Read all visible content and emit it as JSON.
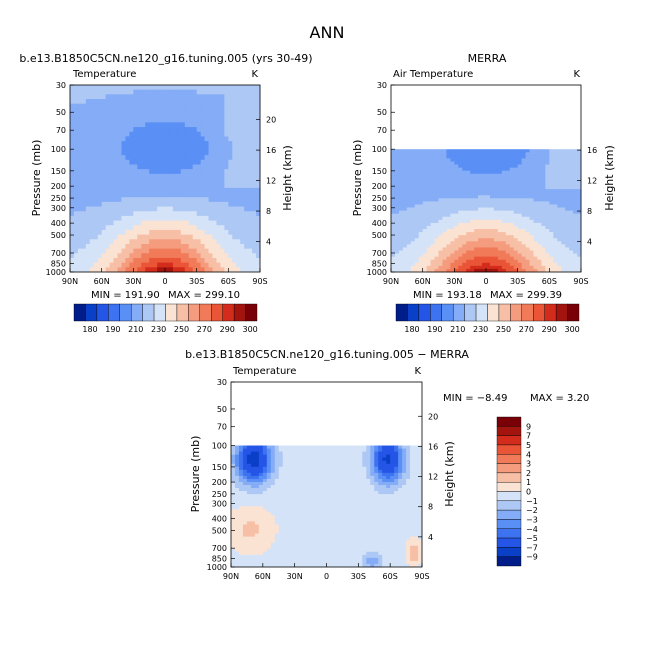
{
  "figure": {
    "main_title": "ANN"
  },
  "palettes": {
    "temperature": [
      "#001d89",
      "#0a3fc8",
      "#2455e6",
      "#3d72f0",
      "#5a8ff5",
      "#85acf6",
      "#adc8f4",
      "#d4e3f7",
      "#fbe3d3",
      "#f7c0a6",
      "#f59c7f",
      "#f17a58",
      "#ea5437",
      "#d42c1c",
      "#a3140f",
      "#7a0008"
    ],
    "difference": [
      "#001d89",
      "#0a3fc8",
      "#2455e6",
      "#3d72f0",
      "#5a8ff5",
      "#85acf6",
      "#adc8f4",
      "#d4e3f7",
      "#fbe3d3",
      "#f7c0a6",
      "#f59c7f",
      "#f17a58",
      "#ea5437",
      "#d42c1c",
      "#a3140f",
      "#7a0008"
    ]
  },
  "chart_data": [
    {
      "type": "heatmap",
      "title": "b.e13.B1850C5CN.ne120_g16.tuning.005 (yrs 30-49)",
      "left_label": "Temperature",
      "right_label": "K",
      "xlabel": "",
      "ylabel": "Pressure (mb)",
      "ylabel_right": "Height (km)",
      "x_ticks": [
        "90N",
        "60N",
        "30N",
        "0",
        "30S",
        "60S",
        "90S"
      ],
      "y_ticks": [
        30,
        50,
        70,
        100,
        150,
        200,
        250,
        300,
        400,
        500,
        700,
        850,
        1000
      ],
      "y_ticks_right": [
        20,
        16,
        12,
        8,
        4
      ],
      "ylim": [
        30,
        1000
      ],
      "y_scale": "log",
      "min_label": "MIN = 191.90",
      "max_label": "MAX = 299.10",
      "min": 191.9,
      "max": 299.1,
      "data_top_pressure": 30,
      "colorbar_orientation": "horizontal",
      "colorbar_labels": [
        "180",
        "190",
        "210",
        "230",
        "250",
        "270",
        "290",
        "300"
      ],
      "levels": [
        180,
        185,
        190,
        200,
        210,
        220,
        230,
        240,
        250,
        260,
        270,
        280,
        290,
        295,
        300
      ]
    },
    {
      "type": "heatmap",
      "title": "MERRA",
      "left_label": "Air Temperature",
      "right_label": "K",
      "xlabel": "",
      "ylabel": "Pressure (mb)",
      "ylabel_right": "Height (km)",
      "x_ticks": [
        "90N",
        "60N",
        "30N",
        "0",
        "30S",
        "60S",
        "90S"
      ],
      "y_ticks": [
        30,
        50,
        70,
        100,
        150,
        200,
        250,
        300,
        400,
        500,
        700,
        850,
        1000
      ],
      "y_ticks_right": [
        16,
        12,
        8,
        4
      ],
      "ylim": [
        30,
        1000
      ],
      "y_scale": "log",
      "min_label": "MIN = 193.18",
      "max_label": "MAX = 299.39",
      "min": 193.18,
      "max": 299.39,
      "data_top_pressure": 100,
      "colorbar_orientation": "horizontal",
      "colorbar_labels": [
        "180",
        "190",
        "210",
        "230",
        "250",
        "270",
        "290",
        "300"
      ],
      "levels": [
        180,
        185,
        190,
        200,
        210,
        220,
        230,
        240,
        250,
        260,
        270,
        280,
        290,
        295,
        300
      ]
    },
    {
      "type": "heatmap",
      "title": "b.e13.B1850C5CN.ne120_g16.tuning.005 − MERRA",
      "left_label": "Temperature",
      "right_label": "K",
      "xlabel": "",
      "ylabel": "Pressure (mb)",
      "ylabel_right": "Height (km)",
      "x_ticks": [
        "90N",
        "60N",
        "30N",
        "0",
        "30S",
        "60S",
        "90S"
      ],
      "y_ticks": [
        30,
        50,
        70,
        100,
        150,
        200,
        250,
        300,
        400,
        500,
        700,
        850,
        1000
      ],
      "y_ticks_right": [
        20,
        16,
        12,
        8,
        4
      ],
      "ylim": [
        30,
        1000
      ],
      "y_scale": "log",
      "min_label": "MIN =  −8.49",
      "max_label": "MAX =    3.20",
      "min": -8.49,
      "max": 3.2,
      "data_top_pressure": 100,
      "colorbar_orientation": "vertical",
      "colorbar_labels": [
        "9",
        "7",
        "5",
        "4",
        "3",
        "2",
        "1",
        "0",
        "−1",
        "−2",
        "−3",
        "−4",
        "−5",
        "−7",
        "−9"
      ],
      "levels": [
        -9,
        -7,
        -5,
        -4,
        -3,
        -2,
        -1,
        0,
        1,
        2,
        3,
        4,
        5,
        7,
        9
      ]
    }
  ]
}
